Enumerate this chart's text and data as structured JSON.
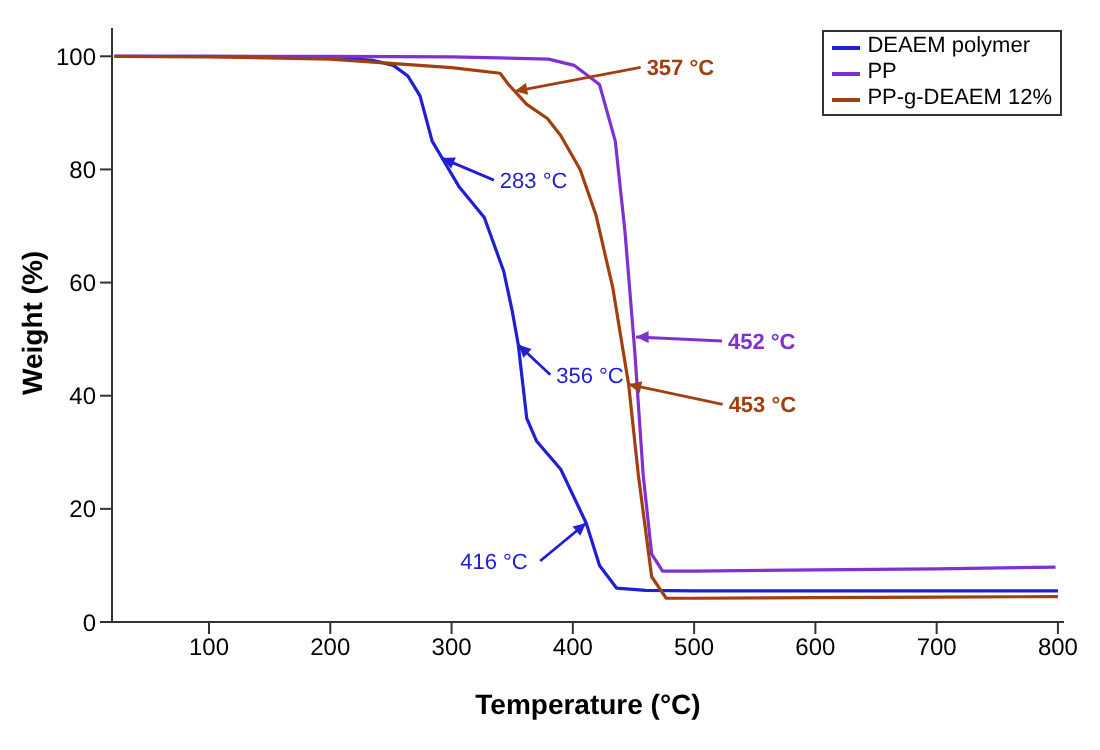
{
  "chart_data": {
    "type": "line",
    "xlabel": "Temperature (°C)",
    "ylabel": "Weight (%)",
    "xlim": [
      20,
      805
    ],
    "xticks": [
      100,
      200,
      300,
      400,
      500,
      600,
      700,
      800
    ],
    "ylim": [
      0,
      105
    ],
    "yticks": [
      0,
      20,
      40,
      60,
      80,
      100
    ],
    "grid": false,
    "legend": "top right",
    "marker": "none",
    "line_style": "solid",
    "series": [
      {
        "name": "DEAEM polymer",
        "color": "#2020d0",
        "x": [
          22,
          100,
          200,
          235,
          252,
          264,
          274,
          284,
          295,
          306,
          327,
          343,
          350,
          355,
          362,
          370,
          390,
          411,
          422,
          436,
          460,
          500,
          600,
          700,
          800
        ],
        "values": [
          100,
          100,
          99.8,
          99.3,
          98.4,
          96.5,
          93,
          85,
          81,
          77,
          71.5,
          62,
          55,
          49,
          36,
          32,
          27,
          17.5,
          10,
          6,
          5.6,
          5.5,
          5.5,
          5.5,
          5.5
        ]
      },
      {
        "name": "PP",
        "color": "#8030d0",
        "x": [
          22,
          100,
          200,
          300,
          380,
          401,
          422,
          435,
          443,
          451,
          458,
          465,
          474,
          500,
          600,
          700,
          798
        ],
        "values": [
          100,
          100,
          100,
          99.9,
          99.5,
          98.4,
          95,
          85,
          69,
          48,
          26,
          12,
          9,
          9,
          9.2,
          9.4,
          9.7
        ]
      },
      {
        "name": "PP-g-DEAEM 12%",
        "color": "#a04010",
        "x": [
          22,
          100,
          200,
          300,
          340,
          347,
          362,
          379,
          390,
          406,
          419,
          433,
          446,
          454,
          465,
          477,
          500,
          600,
          700,
          800
        ],
        "values": [
          100,
          99.9,
          99.5,
          98,
          97,
          95,
          91.5,
          89,
          86,
          80,
          72,
          59,
          42,
          26,
          8,
          4.2,
          4.2,
          4.3,
          4.4,
          4.5
        ]
      }
    ],
    "annotations": [
      {
        "text": "283 °C",
        "x": 292,
        "y": 82
      },
      {
        "text": "356 °C",
        "x": 355,
        "y": 49
      },
      {
        "text": "416 °C",
        "x": 411,
        "y": 17.5
      },
      {
        "text": "357 °C",
        "x": 352,
        "y": 93.8
      },
      "452 °C",
      {
        "text": "453 °C",
        "x": 446,
        "y": 42
      }
    ]
  }
}
